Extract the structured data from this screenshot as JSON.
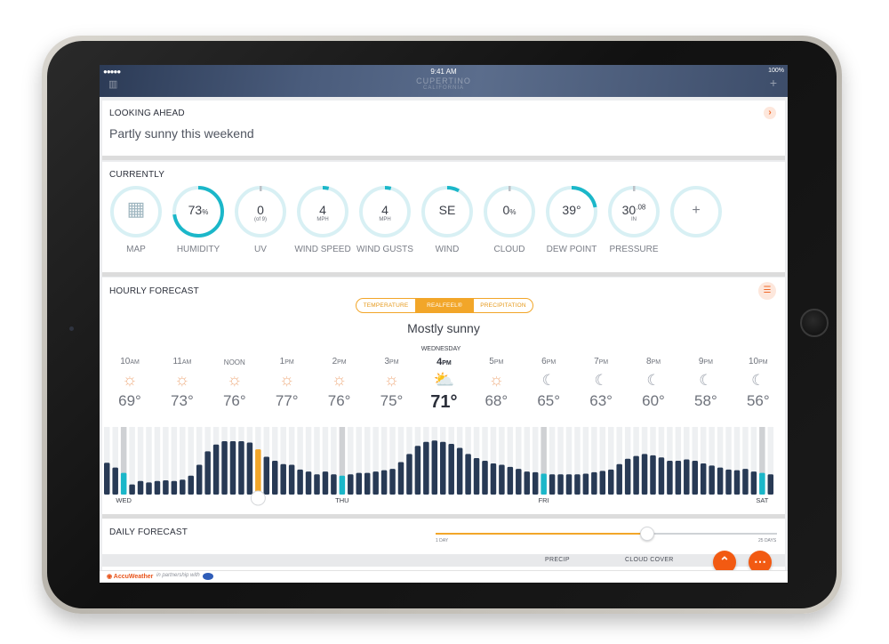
{
  "status_bar": {
    "signal": "●●●●●",
    "time": "9:41 AM",
    "battery": "100%",
    "location": "CUPERTINO",
    "location_sub": "CALIFORNIA"
  },
  "looking_ahead": {
    "title": "LOOKING AHEAD",
    "headline": "Partly sunny this weekend",
    "arrow": "›"
  },
  "currently": {
    "title": "CURRENTLY",
    "items": [
      {
        "label": "MAP",
        "value": "",
        "unit": "",
        "sub": "",
        "fill": 0
      },
      {
        "label": "HUMIDITY",
        "value": "73",
        "unit": "%",
        "sub": "",
        "fill": 0.73
      },
      {
        "label": "UV",
        "value": "0",
        "unit": "",
        "sub": "(of 9)",
        "fill": 0
      },
      {
        "label": "WIND SPEED",
        "value": "4",
        "unit": "",
        "sub": "MPH",
        "fill": 0.04
      },
      {
        "label": "WIND GUSTS",
        "value": "4",
        "unit": "",
        "sub": "MPH",
        "fill": 0.04
      },
      {
        "label": "WIND",
        "value": "SE",
        "unit": "",
        "sub": "",
        "fill": 0.08
      },
      {
        "label": "CLOUD",
        "value": "0",
        "unit": "%",
        "sub": "",
        "fill": 0
      },
      {
        "label": "DEW POINT",
        "value": "39°",
        "unit": "",
        "sub": "",
        "fill": 0.22
      },
      {
        "label": "PRESSURE",
        "value": "30",
        "unit": ".08",
        "sub": "IN",
        "fill": 0
      },
      {
        "label": "",
        "value": "+",
        "unit": "",
        "sub": "",
        "fill": 0
      }
    ]
  },
  "hourly": {
    "title": "HOURLY FORECAST",
    "tabs": [
      "TEMPERATURE",
      "REALFEEL®",
      "PRECIPITATION"
    ],
    "active_tab": 1,
    "condition": "Mostly sunny",
    "current_day": "WEDNESDAY",
    "hours": [
      {
        "h": "10",
        "ampm": "AM",
        "icon": "sun",
        "temp": "69°"
      },
      {
        "h": "11",
        "ampm": "AM",
        "icon": "sun",
        "temp": "73°"
      },
      {
        "h": "NOON",
        "ampm": "",
        "icon": "sun",
        "temp": "76°"
      },
      {
        "h": "1",
        "ampm": "PM",
        "icon": "sun",
        "temp": "77°"
      },
      {
        "h": "2",
        "ampm": "PM",
        "icon": "sun",
        "temp": "76°"
      },
      {
        "h": "3",
        "ampm": "PM",
        "icon": "sun",
        "temp": "75°"
      },
      {
        "h": "4",
        "ampm": "PM",
        "icon": "partly-sunny",
        "temp": "71°",
        "current": true
      },
      {
        "h": "5",
        "ampm": "PM",
        "icon": "sun",
        "temp": "68°"
      },
      {
        "h": "6",
        "ampm": "PM",
        "icon": "moon",
        "temp": "65°"
      },
      {
        "h": "7",
        "ampm": "PM",
        "icon": "moon",
        "temp": "63°"
      },
      {
        "h": "8",
        "ampm": "PM",
        "icon": "moon",
        "temp": "60°"
      },
      {
        "h": "9",
        "ampm": "PM",
        "icon": "moon",
        "temp": "58°"
      },
      {
        "h": "10",
        "ampm": "PM",
        "icon": "moon",
        "temp": "56°"
      }
    ],
    "axis_days": [
      "WED",
      "THU",
      "FRI",
      "SAT"
    ],
    "bar_levels": [
      0.47,
      0.4,
      0.32,
      0.15,
      0.2,
      0.18,
      0.2,
      0.21,
      0.2,
      0.22,
      0.28,
      0.44,
      0.64,
      0.74,
      0.79,
      0.79,
      0.79,
      0.77,
      0.67,
      0.56,
      0.5,
      0.45,
      0.44,
      0.37,
      0.34,
      0.3,
      0.34,
      0.3,
      0.28,
      0.3,
      0.32,
      0.32,
      0.34,
      0.36,
      0.38,
      0.48,
      0.6,
      0.72,
      0.78,
      0.8,
      0.78,
      0.75,
      0.69,
      0.6,
      0.54,
      0.5,
      0.46,
      0.44,
      0.41,
      0.38,
      0.34,
      0.33,
      0.31,
      0.3,
      0.3,
      0.3,
      0.3,
      0.31,
      0.33,
      0.35,
      0.37,
      0.45,
      0.53,
      0.57,
      0.6,
      0.58,
      0.55,
      0.5,
      0.5,
      0.52,
      0.5,
      0.46,
      0.43,
      0.4,
      0.37,
      0.36,
      0.38,
      0.34,
      0.32,
      0.3
    ],
    "highlight_bars": {
      "2": "teal",
      "18": "orange",
      "28": "teal",
      "52": "teal",
      "78": "teal"
    },
    "day_marks": [
      2,
      28,
      52,
      78
    ]
  },
  "daily": {
    "title": "DAILY FORECAST",
    "slider_min": "1 DAY",
    "slider_max": "25 DAYS",
    "slider_value": 0.62,
    "columns": [
      "PRECIP",
      "CLOUD COVER"
    ]
  },
  "footer": {
    "brand": "◉ AccuWeather",
    "partner": "in partnership with"
  },
  "colors": {
    "accent": "#f2a629",
    "teal": "#1bb7c9",
    "bar": "#283a55",
    "orange_fab": "#f25a12"
  }
}
